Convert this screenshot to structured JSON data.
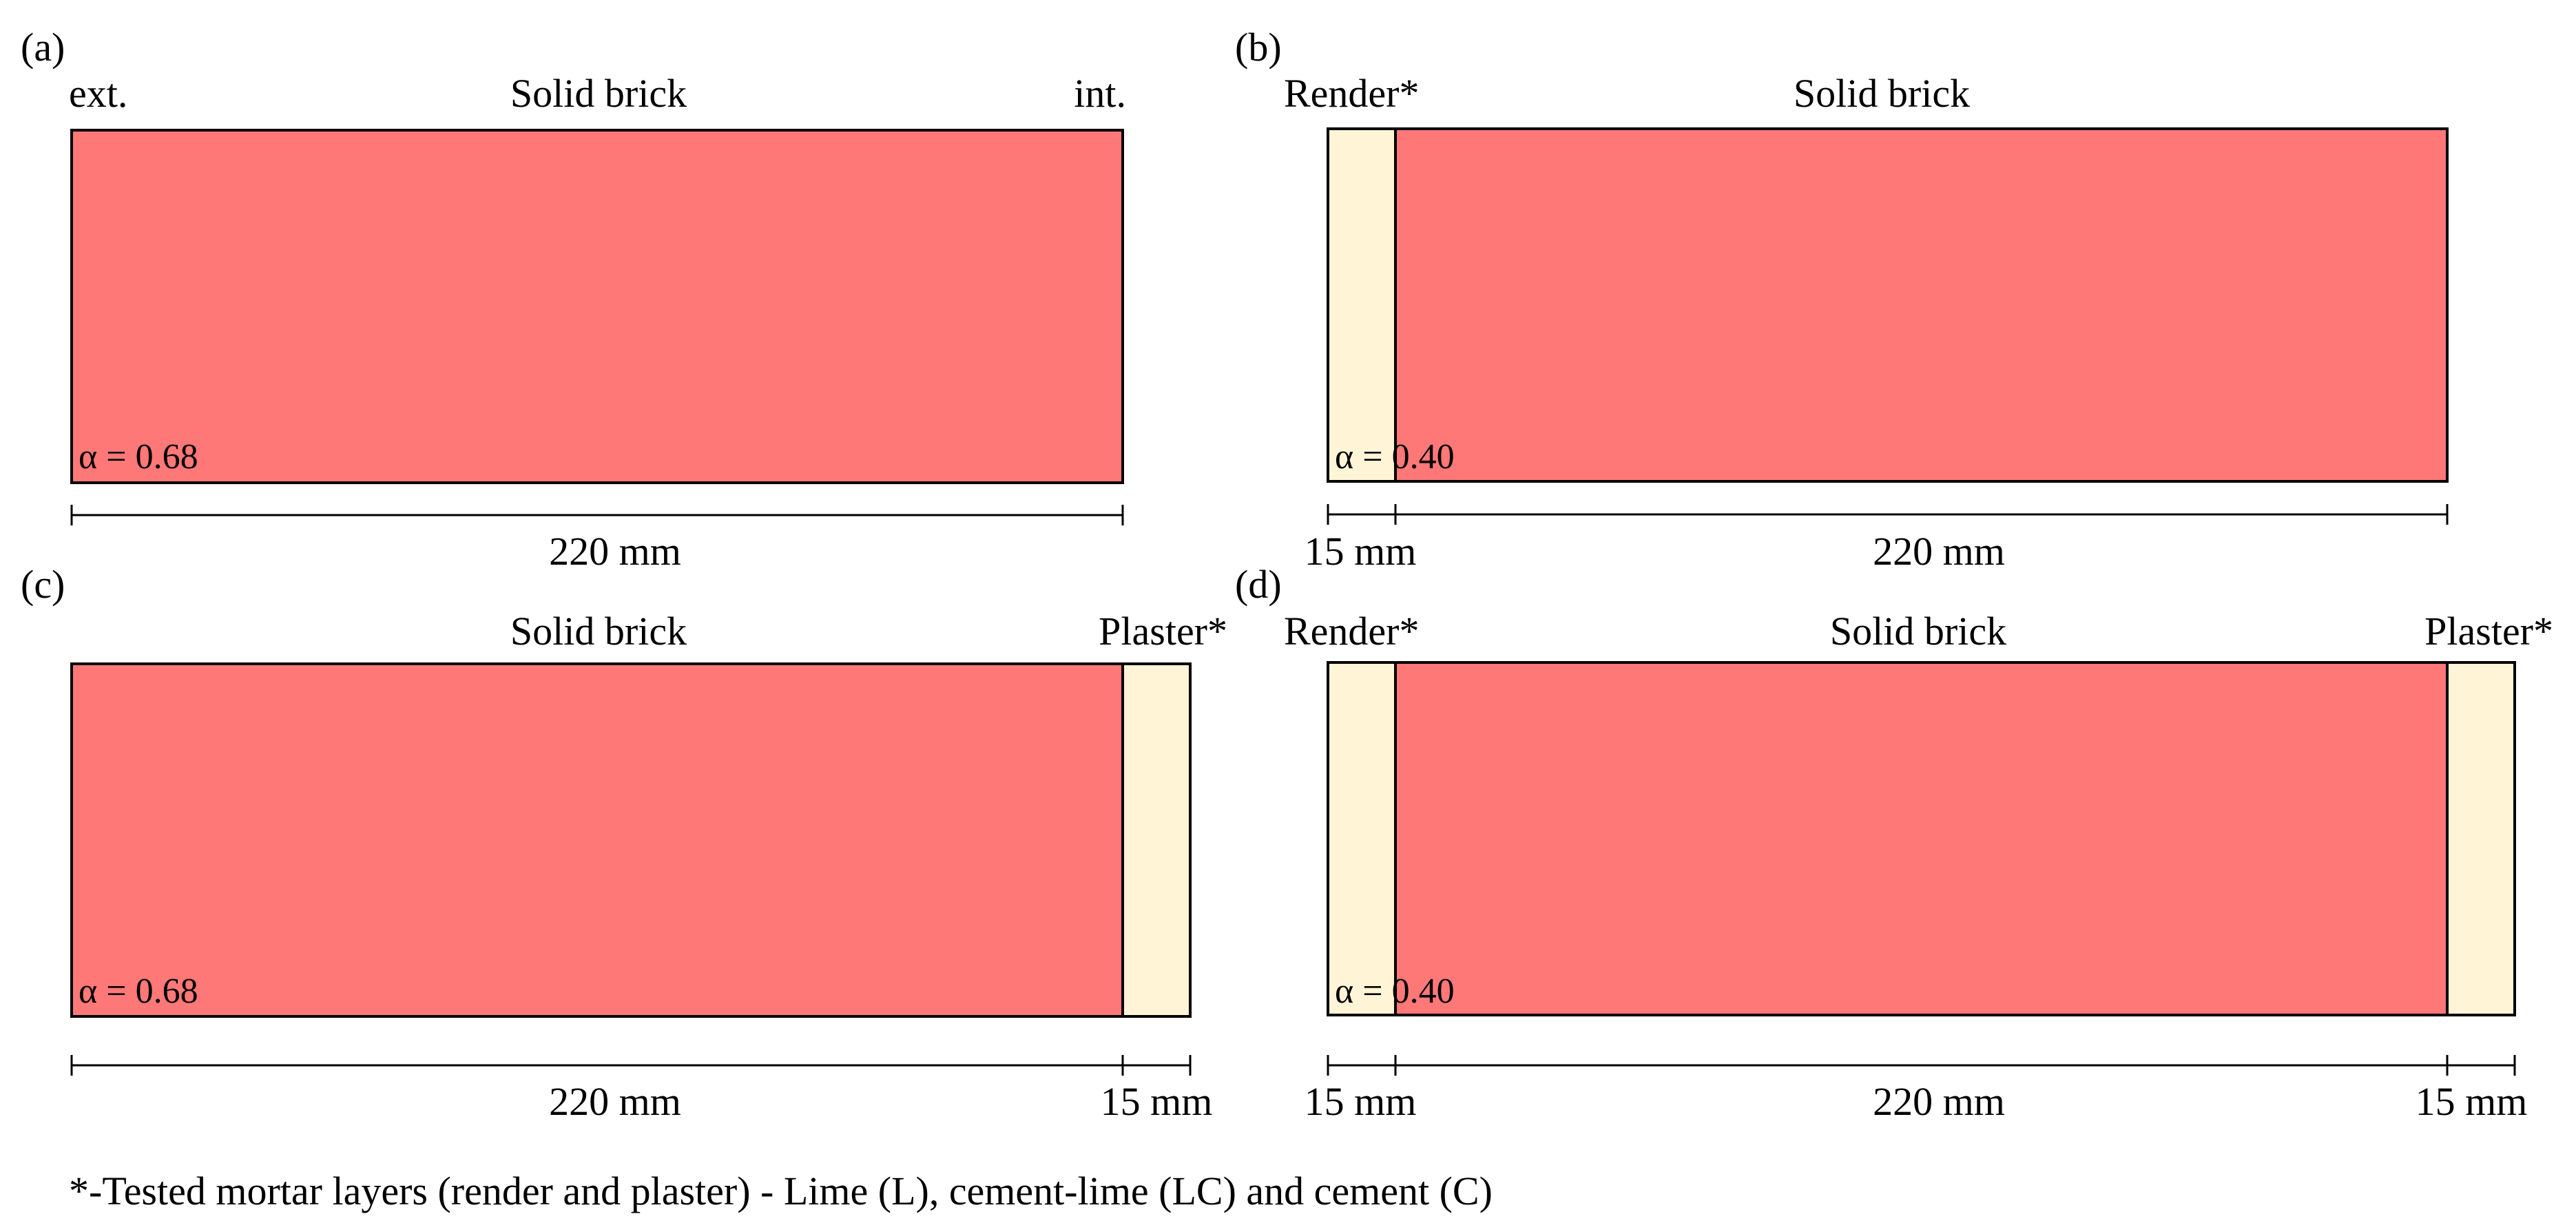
{
  "colors": {
    "brick": "#FF7878",
    "mortar": "#FFF5D6",
    "stroke": "#000000"
  },
  "panels": {
    "a": {
      "label": "(a)",
      "ext": "ext.",
      "brick": "Solid brick",
      "int": "int.",
      "alpha": "α = 0.68",
      "brick_mm": "220 mm"
    },
    "b": {
      "label": "(b)",
      "render": "Render*",
      "brick": "Solid brick",
      "alpha": "α = 0.40",
      "render_mm": "15 mm",
      "brick_mm": "220 mm"
    },
    "c": {
      "label": "(c)",
      "brick": "Solid brick",
      "plaster": "Plaster*",
      "alpha": "α = 0.68",
      "brick_mm": "220 mm",
      "plaster_mm": "15 mm"
    },
    "d": {
      "label": "(d)",
      "render": "Render*",
      "brick": "Solid brick",
      "plaster": "Plaster*",
      "alpha": "α = 0.40",
      "render_mm": "15 mm",
      "brick_mm": "220 mm",
      "plaster_mm": "15 mm"
    }
  },
  "footnote": "*-Tested mortar layers (render and plaster) - Lime (L), cement-lime (LC) and cement (C)"
}
